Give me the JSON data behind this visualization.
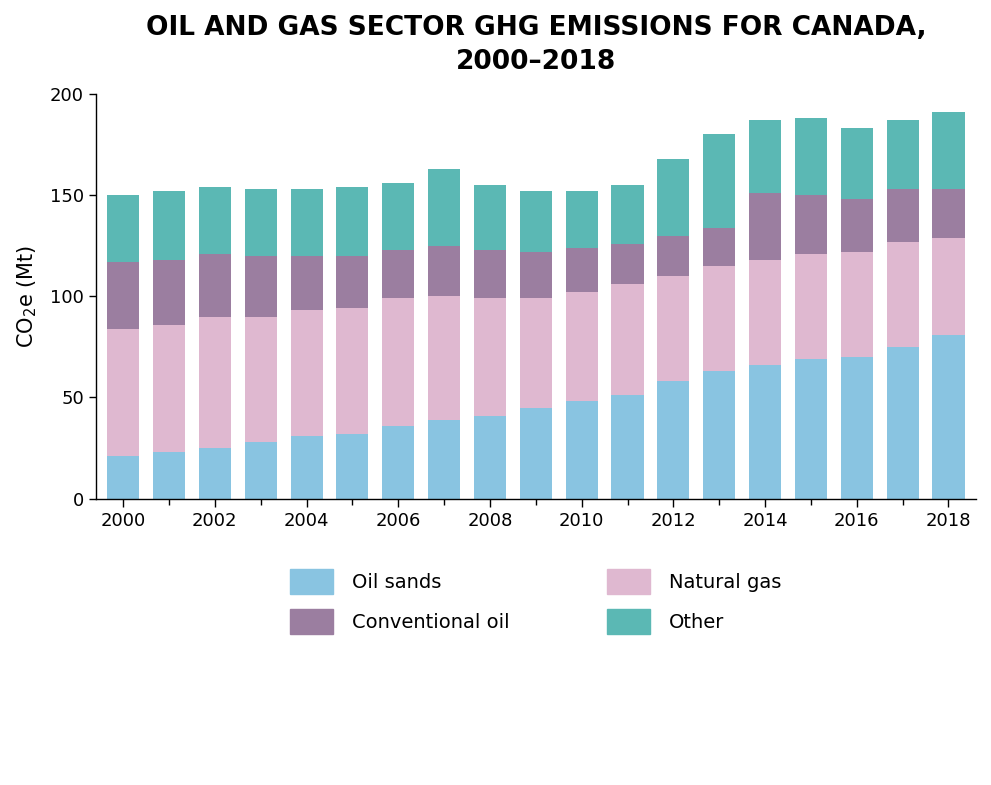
{
  "title": "OIL AND GAS SECTOR GHG EMISSIONS FOR CANADA,\n2000–2018",
  "ylabel": "CO₂e (Mt)",
  "years": [
    2000,
    2001,
    2002,
    2003,
    2004,
    2005,
    2006,
    2007,
    2008,
    2009,
    2010,
    2011,
    2012,
    2013,
    2014,
    2015,
    2016,
    2017,
    2018
  ],
  "oil_sands": [
    21,
    23,
    25,
    28,
    31,
    32,
    36,
    39,
    41,
    45,
    48,
    51,
    58,
    63,
    66,
    69,
    70,
    75,
    81
  ],
  "natural_gas": [
    63,
    63,
    65,
    62,
    62,
    62,
    63,
    61,
    58,
    54,
    54,
    55,
    52,
    52,
    52,
    52,
    52,
    52,
    48
  ],
  "conventional_oil": [
    33,
    32,
    31,
    30,
    27,
    26,
    24,
    25,
    24,
    23,
    22,
    20,
    20,
    19,
    33,
    29,
    26,
    26,
    24
  ],
  "other": [
    33,
    34,
    33,
    33,
    33,
    34,
    33,
    38,
    32,
    30,
    28,
    29,
    38,
    46,
    36,
    38,
    35,
    34,
    38
  ],
  "colors": {
    "oil_sands": "#89C4E1",
    "natural_gas": "#DFB8D0",
    "conventional_oil": "#9B7EA0",
    "other": "#5BB8B4"
  },
  "ylim": [
    0,
    200
  ],
  "yticks": [
    0,
    50,
    100,
    150,
    200
  ],
  "xticks": [
    2000,
    2002,
    2004,
    2006,
    2008,
    2010,
    2012,
    2014,
    2016,
    2018
  ],
  "minor_xticks": [
    2000,
    2001,
    2002,
    2003,
    2004,
    2005,
    2006,
    2007,
    2008,
    2009,
    2010,
    2011,
    2012,
    2013,
    2014,
    2015,
    2016,
    2017,
    2018
  ],
  "legend": [
    {
      "label": "Oil sands",
      "color": "#89C4E1"
    },
    {
      "label": "Natural gas",
      "color": "#DFB8D0"
    },
    {
      "label": "Conventional oil",
      "color": "#9B7EA0"
    },
    {
      "label": "Other",
      "color": "#5BB8B4"
    }
  ],
  "bar_width": 0.7,
  "title_fontsize": 19,
  "axis_label_fontsize": 15,
  "tick_fontsize": 13,
  "legend_fontsize": 14,
  "background_color": "#ffffff"
}
